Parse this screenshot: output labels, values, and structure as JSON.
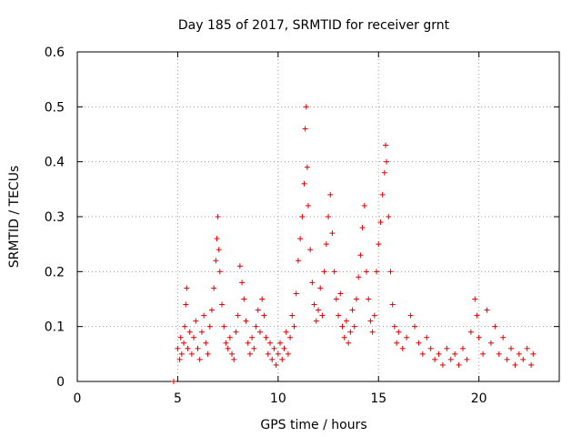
{
  "chart_data": {
    "type": "scatter",
    "title": "Day 185 of 2017, SRMTID for receiver grnt",
    "xlabel": "GPS time / hours",
    "ylabel": "SRMTID / TECUs",
    "xlim": [
      0,
      24
    ],
    "ylim": [
      0,
      0.6
    ],
    "xticks": [
      0,
      5,
      10,
      15,
      20
    ],
    "yticks": [
      0,
      0.1,
      0.2,
      0.3,
      0.4,
      0.5,
      0.6
    ],
    "xtick_labels": [
      "0",
      "5",
      "10",
      "15",
      "20"
    ],
    "ytick_labels": [
      "0",
      "0.1",
      "0.2",
      "0.3",
      "0.4",
      "0.5",
      "0.6"
    ],
    "grid": true,
    "marker": "+",
    "color": "#e00000",
    "series": [
      {
        "name": "grnt",
        "points": [
          [
            4.8,
            0.0
          ],
          [
            5.0,
            0.06
          ],
          [
            5.1,
            0.04
          ],
          [
            5.15,
            0.08
          ],
          [
            5.2,
            0.05
          ],
          [
            5.3,
            0.07
          ],
          [
            5.35,
            0.1
          ],
          [
            5.4,
            0.14
          ],
          [
            5.45,
            0.17
          ],
          [
            5.5,
            0.06
          ],
          [
            5.6,
            0.09
          ],
          [
            5.7,
            0.05
          ],
          [
            5.8,
            0.08
          ],
          [
            5.9,
            0.11
          ],
          [
            6.0,
            0.06
          ],
          [
            6.1,
            0.04
          ],
          [
            6.2,
            0.09
          ],
          [
            6.3,
            0.12
          ],
          [
            6.4,
            0.07
          ],
          [
            6.5,
            0.05
          ],
          [
            6.6,
            0.1
          ],
          [
            6.7,
            0.13
          ],
          [
            6.8,
            0.17
          ],
          [
            6.9,
            0.22
          ],
          [
            6.95,
            0.26
          ],
          [
            7.0,
            0.3
          ],
          [
            7.05,
            0.24
          ],
          [
            7.1,
            0.2
          ],
          [
            7.2,
            0.14
          ],
          [
            7.3,
            0.1
          ],
          [
            7.4,
            0.07
          ],
          [
            7.5,
            0.06
          ],
          [
            7.6,
            0.08
          ],
          [
            7.7,
            0.05
          ],
          [
            7.8,
            0.04
          ],
          [
            7.9,
            0.09
          ],
          [
            8.0,
            0.12
          ],
          [
            8.1,
            0.21
          ],
          [
            8.2,
            0.18
          ],
          [
            8.3,
            0.15
          ],
          [
            8.4,
            0.11
          ],
          [
            8.5,
            0.07
          ],
          [
            8.6,
            0.05
          ],
          [
            8.7,
            0.08
          ],
          [
            8.8,
            0.06
          ],
          [
            8.9,
            0.1
          ],
          [
            9.0,
            0.13
          ],
          [
            9.1,
            0.09
          ],
          [
            9.2,
            0.15
          ],
          [
            9.3,
            0.12
          ],
          [
            9.4,
            0.08
          ],
          [
            9.5,
            0.05
          ],
          [
            9.6,
            0.07
          ],
          [
            9.7,
            0.04
          ],
          [
            9.8,
            0.06
          ],
          [
            9.9,
            0.03
          ],
          [
            10.0,
            0.05
          ],
          [
            10.1,
            0.07
          ],
          [
            10.2,
            0.04
          ],
          [
            10.3,
            0.06
          ],
          [
            10.4,
            0.09
          ],
          [
            10.5,
            0.05
          ],
          [
            10.6,
            0.08
          ],
          [
            10.7,
            0.12
          ],
          [
            10.8,
            0.1
          ],
          [
            10.9,
            0.16
          ],
          [
            11.0,
            0.22
          ],
          [
            11.1,
            0.26
          ],
          [
            11.2,
            0.3
          ],
          [
            11.3,
            0.36
          ],
          [
            11.35,
            0.46
          ],
          [
            11.4,
            0.5
          ],
          [
            11.45,
            0.39
          ],
          [
            11.5,
            0.32
          ],
          [
            11.6,
            0.24
          ],
          [
            11.7,
            0.18
          ],
          [
            11.8,
            0.14
          ],
          [
            11.9,
            0.11
          ],
          [
            12.0,
            0.13
          ],
          [
            12.1,
            0.17
          ],
          [
            12.2,
            0.12
          ],
          [
            12.3,
            0.2
          ],
          [
            12.4,
            0.25
          ],
          [
            12.5,
            0.3
          ],
          [
            12.6,
            0.34
          ],
          [
            12.7,
            0.27
          ],
          [
            12.8,
            0.2
          ],
          [
            12.9,
            0.15
          ],
          [
            13.0,
            0.12
          ],
          [
            13.1,
            0.16
          ],
          [
            13.2,
            0.1
          ],
          [
            13.3,
            0.08
          ],
          [
            13.4,
            0.11
          ],
          [
            13.5,
            0.07
          ],
          [
            13.6,
            0.09
          ],
          [
            13.7,
            0.13
          ],
          [
            13.8,
            0.1
          ],
          [
            13.9,
            0.15
          ],
          [
            14.0,
            0.19
          ],
          [
            14.1,
            0.23
          ],
          [
            14.2,
            0.28
          ],
          [
            14.3,
            0.32
          ],
          [
            14.4,
            0.2
          ],
          [
            14.5,
            0.15
          ],
          [
            14.6,
            0.11
          ],
          [
            14.7,
            0.09
          ],
          [
            14.8,
            0.12
          ],
          [
            14.9,
            0.2
          ],
          [
            15.0,
            0.25
          ],
          [
            15.1,
            0.29
          ],
          [
            15.2,
            0.34
          ],
          [
            15.3,
            0.38
          ],
          [
            15.35,
            0.43
          ],
          [
            15.4,
            0.4
          ],
          [
            15.5,
            0.3
          ],
          [
            15.6,
            0.2
          ],
          [
            15.7,
            0.14
          ],
          [
            15.8,
            0.1
          ],
          [
            15.9,
            0.07
          ],
          [
            16.0,
            0.09
          ],
          [
            16.2,
            0.06
          ],
          [
            16.4,
            0.08
          ],
          [
            16.6,
            0.12
          ],
          [
            16.8,
            0.1
          ],
          [
            17.0,
            0.07
          ],
          [
            17.2,
            0.05
          ],
          [
            17.4,
            0.08
          ],
          [
            17.6,
            0.06
          ],
          [
            17.8,
            0.04
          ],
          [
            18.0,
            0.05
          ],
          [
            18.2,
            0.03
          ],
          [
            18.4,
            0.06
          ],
          [
            18.6,
            0.04
          ],
          [
            18.8,
            0.05
          ],
          [
            19.0,
            0.03
          ],
          [
            19.2,
            0.06
          ],
          [
            19.4,
            0.04
          ],
          [
            19.6,
            0.09
          ],
          [
            19.8,
            0.15
          ],
          [
            19.9,
            0.12
          ],
          [
            20.0,
            0.08
          ],
          [
            20.2,
            0.05
          ],
          [
            20.4,
            0.13
          ],
          [
            20.6,
            0.07
          ],
          [
            20.8,
            0.1
          ],
          [
            21.0,
            0.05
          ],
          [
            21.2,
            0.08
          ],
          [
            21.4,
            0.04
          ],
          [
            21.6,
            0.06
          ],
          [
            21.8,
            0.03
          ],
          [
            22.0,
            0.05
          ],
          [
            22.2,
            0.04
          ],
          [
            22.4,
            0.06
          ],
          [
            22.6,
            0.03
          ],
          [
            22.7,
            0.05
          ]
        ]
      }
    ]
  }
}
